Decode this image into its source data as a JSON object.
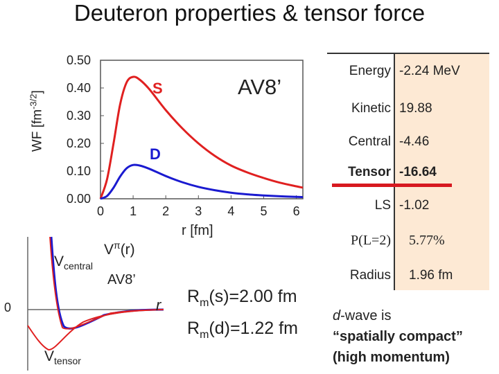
{
  "title": "Deuteron properties & tensor force",
  "wf_plot": {
    "ylabel": "WF [fm",
    "ylabel_exp": "-3/2",
    "ylabel_end": "]",
    "xlabel": "r [fm]",
    "model": "AV8’",
    "x_ticks": [
      "0",
      "1",
      "2",
      "3",
      "4",
      "5",
      "6"
    ],
    "y_ticks": [
      "0.00",
      "0.10",
      "0.20",
      "0.30",
      "0.40",
      "0.50"
    ],
    "s_label": "S",
    "d_label": "D",
    "colors": {
      "s": "#e02020",
      "d": "#1a1ad0"
    }
  },
  "chart_data": {
    "type": "line",
    "xlabel": "r [fm]",
    "ylabel": "WF [fm-3/2]",
    "xlim": [
      0,
      6.2
    ],
    "ylim": [
      0,
      0.5
    ],
    "series": [
      {
        "name": "S",
        "x": [
          0,
          0.2,
          0.4,
          0.6,
          0.8,
          1.0,
          1.2,
          1.5,
          2.0,
          2.5,
          3.0,
          3.5,
          4.0,
          4.5,
          5.0,
          5.5,
          6.0,
          6.2
        ],
        "y": [
          0,
          0.07,
          0.2,
          0.34,
          0.42,
          0.44,
          0.43,
          0.395,
          0.32,
          0.255,
          0.2,
          0.155,
          0.12,
          0.095,
          0.075,
          0.058,
          0.045,
          0.04
        ]
      },
      {
        "name": "D",
        "x": [
          0,
          0.2,
          0.4,
          0.6,
          0.8,
          1.0,
          1.2,
          1.5,
          2.0,
          2.5,
          3.0,
          3.5,
          4.0,
          4.5,
          5.0,
          5.5,
          6.0,
          6.2
        ],
        "y": [
          0,
          0.01,
          0.04,
          0.08,
          0.11,
          0.122,
          0.12,
          0.108,
          0.082,
          0.06,
          0.043,
          0.031,
          0.022,
          0.016,
          0.012,
          0.009,
          0.007,
          0.006
        ]
      }
    ]
  },
  "potential_plot": {
    "v_central_main": "V",
    "v_central_sub": "central",
    "v_tensor_main": "V",
    "v_tensor_sub": "tensor",
    "v_pi": "V",
    "v_pi_sup": "π",
    "v_pi_arg": "(r)",
    "model": "AV8’",
    "zero_label": "0",
    "r_label": "r"
  },
  "radii": {
    "rs_pre": "R",
    "rs_sub": "m",
    "rs_post": "(s)=2.00 fm",
    "rd_pre": "R",
    "rd_sub": "m",
    "rd_post": "(d)=1.22 fm"
  },
  "table": {
    "rows": [
      {
        "label": "Energy",
        "value": "-2.24 MeV"
      },
      {
        "label": "Kinetic",
        "value": "19.88"
      },
      {
        "label": "Central",
        "value": "-4.46"
      },
      {
        "label": "Tensor",
        "value": "-16.64"
      },
      {
        "label": "LS",
        "value": "-1.02"
      },
      {
        "label": "P(L=2)",
        "value": "5.77%"
      },
      {
        "label": "Radius",
        "value": "1.96 fm"
      }
    ]
  },
  "note": {
    "line1_italic": "d",
    "line1_rest": "-wave is",
    "line2": "“spatially compact”",
    "line3": "(high momentum)"
  }
}
